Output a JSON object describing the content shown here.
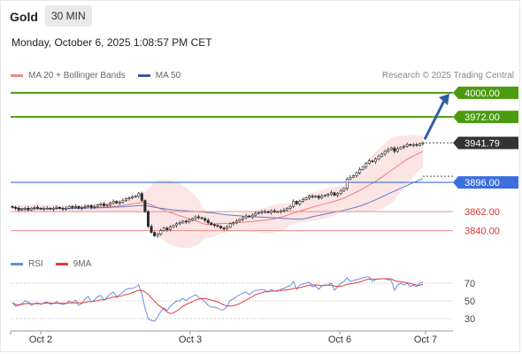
{
  "header": {
    "title": "Gold",
    "timeframe": "30 MIN",
    "datetime": "Monday, October 6, 2025 1:08:57 PM CET"
  },
  "legend": {
    "ma20_label": "MA 20 + Bollinger Bands",
    "ma50_label": "MA 50",
    "credit": "Research © 2025 Trading Central"
  },
  "rsi_legend": {
    "rsi_label": "RSI",
    "ma_label": "9MA"
  },
  "colors": {
    "resistance": "#4a9b0f",
    "support": "#3b6fe0",
    "support_light": "#f08a8a",
    "price_tag": "#333333",
    "arrow": "#2f5ea8",
    "candle": "#2b2b2b",
    "bollinger_fill": "#fbdcdc",
    "ma20": "#f07c7c",
    "ma50": "#5a7ec9",
    "rsi": "#6b8de0",
    "rsi_ma": "#e03b3b"
  },
  "chart_data": {
    "type": "candlestick",
    "x_ticks": [
      "Oct 2",
      "Oct 3",
      "Oct 6",
      "Oct 7"
    ],
    "ylim": [
      3818,
      4005
    ],
    "levels": [
      {
        "value": 4000.0,
        "label": "4000.00",
        "kind": "resistance"
      },
      {
        "value": 3972.0,
        "label": "3972.00",
        "kind": "resistance"
      },
      {
        "value": 3941.79,
        "label": "3941.79",
        "kind": "current"
      },
      {
        "value": 3896.0,
        "label": "3896.00",
        "kind": "support"
      },
      {
        "value": 3862.0,
        "label": "3862.00",
        "kind": "support-light"
      },
      {
        "value": 3840.0,
        "label": "3840.00",
        "kind": "support-light"
      }
    ],
    "close": [
      3867,
      3866,
      3864,
      3865,
      3866,
      3864,
      3866,
      3867,
      3866,
      3865,
      3866,
      3866,
      3865,
      3866,
      3867,
      3866,
      3865,
      3866,
      3868,
      3867,
      3868,
      3866,
      3867,
      3868,
      3869,
      3867,
      3868,
      3870,
      3871,
      3869,
      3870,
      3872,
      3874,
      3872,
      3873,
      3875,
      3877,
      3878,
      3879,
      3880,
      3883,
      3875,
      3862,
      3845,
      3838,
      3834,
      3836,
      3840,
      3843,
      3841,
      3844,
      3846,
      3848,
      3849,
      3851,
      3850,
      3852,
      3854,
      3856,
      3855,
      3854,
      3852,
      3849,
      3847,
      3846,
      3845,
      3843,
      3842,
      3844,
      3848,
      3849,
      3851,
      3853,
      3855,
      3857,
      3856,
      3858,
      3860,
      3861,
      3862,
      3862,
      3861,
      3863,
      3862,
      3862,
      3863,
      3864,
      3866,
      3868,
      3874,
      3871,
      3874,
      3876,
      3878,
      3880,
      3879,
      3880,
      3878,
      3880,
      3881,
      3882,
      3884,
      3881,
      3883,
      3886,
      3889,
      3900,
      3902,
      3904,
      3907,
      3911,
      3914,
      3918,
      3921,
      3920,
      3923,
      3926,
      3929,
      3932,
      3934,
      3936,
      3932,
      3935,
      3937,
      3938,
      3940,
      3939,
      3940,
      3939,
      3941,
      3942
    ],
    "rsi": {
      "ticks": [
        30,
        50,
        70
      ],
      "ylim": [
        20,
        80
      ],
      "values": [
        48,
        44,
        45,
        47,
        50,
        49,
        45,
        47,
        48,
        46,
        48,
        49,
        46,
        47,
        49,
        47,
        46,
        47,
        50,
        48,
        51,
        45,
        47,
        52,
        55,
        49,
        51,
        55,
        56,
        51,
        54,
        58,
        60,
        55,
        57,
        60,
        63,
        64,
        64,
        66,
        68,
        58,
        42,
        30,
        28,
        27,
        32,
        38,
        42,
        39,
        44,
        47,
        50,
        50,
        53,
        50,
        53,
        55,
        57,
        54,
        52,
        49,
        45,
        43,
        43,
        42,
        40,
        40,
        44,
        51,
        52,
        55,
        57,
        59,
        60,
        57,
        60,
        62,
        62,
        63,
        62,
        60,
        63,
        61,
        61,
        63,
        64,
        66,
        67,
        72,
        63,
        68,
        69,
        70,
        71,
        66,
        67,
        63,
        67,
        68,
        68,
        70,
        62,
        66,
        70,
        72,
        76,
        72,
        73,
        74,
        75,
        76,
        77,
        77,
        72,
        74,
        75,
        75,
        75,
        74,
        73,
        62,
        68,
        70,
        68,
        70,
        66,
        68,
        66,
        70,
        71
      ]
    }
  }
}
